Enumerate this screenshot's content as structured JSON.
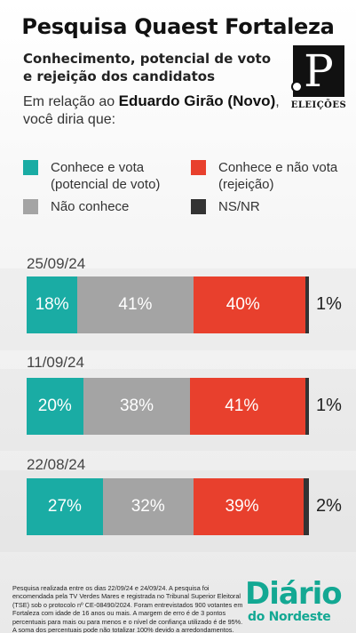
{
  "header": {
    "title": "Pesquisa Quaest Fortaleza",
    "subtitle": "Conhecimento, potencial de voto e rejeição dos candidatos",
    "question_prefix": "Em relação ao ",
    "candidate": "Eduardo Girão (Novo)",
    "question_suffix": ",",
    "question_line2": "você diria que:"
  },
  "logo": {
    "mark": "P",
    "caption": "ELEIÇÕES"
  },
  "legend": [
    {
      "label": "Conhece e vota (potencial de voto)",
      "color": "#1aaca4"
    },
    {
      "label": "Conhece e não vota (rejeição)",
      "color": "#e8402d"
    },
    {
      "label": "Não conhece",
      "color": "#a4a4a4"
    },
    {
      "label": "NS/NR",
      "color": "#333333"
    }
  ],
  "chart_data": {
    "type": "bar",
    "orientation": "horizontal-stacked-100",
    "categories": [
      "25/09/24",
      "11/09/24",
      "22/08/24"
    ],
    "series": [
      {
        "name": "Conhece e vota (potencial de voto)",
        "values": [
          18,
          20,
          27
        ],
        "color": "#1aaca4"
      },
      {
        "name": "Não conhece",
        "values": [
          41,
          38,
          32
        ],
        "color": "#a4a4a4"
      },
      {
        "name": "Conhece e não vota (rejeição)",
        "values": [
          40,
          41,
          39
        ],
        "color": "#e8402d"
      },
      {
        "name": "NS/NR",
        "values": [
          1,
          1,
          2
        ],
        "color": "#333333"
      }
    ],
    "value_suffix": "%",
    "xlim": [
      0,
      100
    ],
    "legend_position": "top"
  },
  "footnote": "Pesquisa realizada entre os dias 22/09/24 e 24/09/24. A pesquisa foi encomendada pela TV Verdes Mares e registrada no Tribunal Superior Eleitoral (TSE) sob o protocolo nº CE-08490/2024. Foram entrevistados 900 votantes em Fortaleza com idade de 16 anos ou mais. A margem de erro é de 3 pontos percentuais para mais ou para menos e o nível de confiança utilizado é de 95%. A soma dos percentuais pode não totalizar 100% devido a arredondamentos.",
  "brand": {
    "top": "Diário",
    "bottom": "do Nordeste"
  }
}
